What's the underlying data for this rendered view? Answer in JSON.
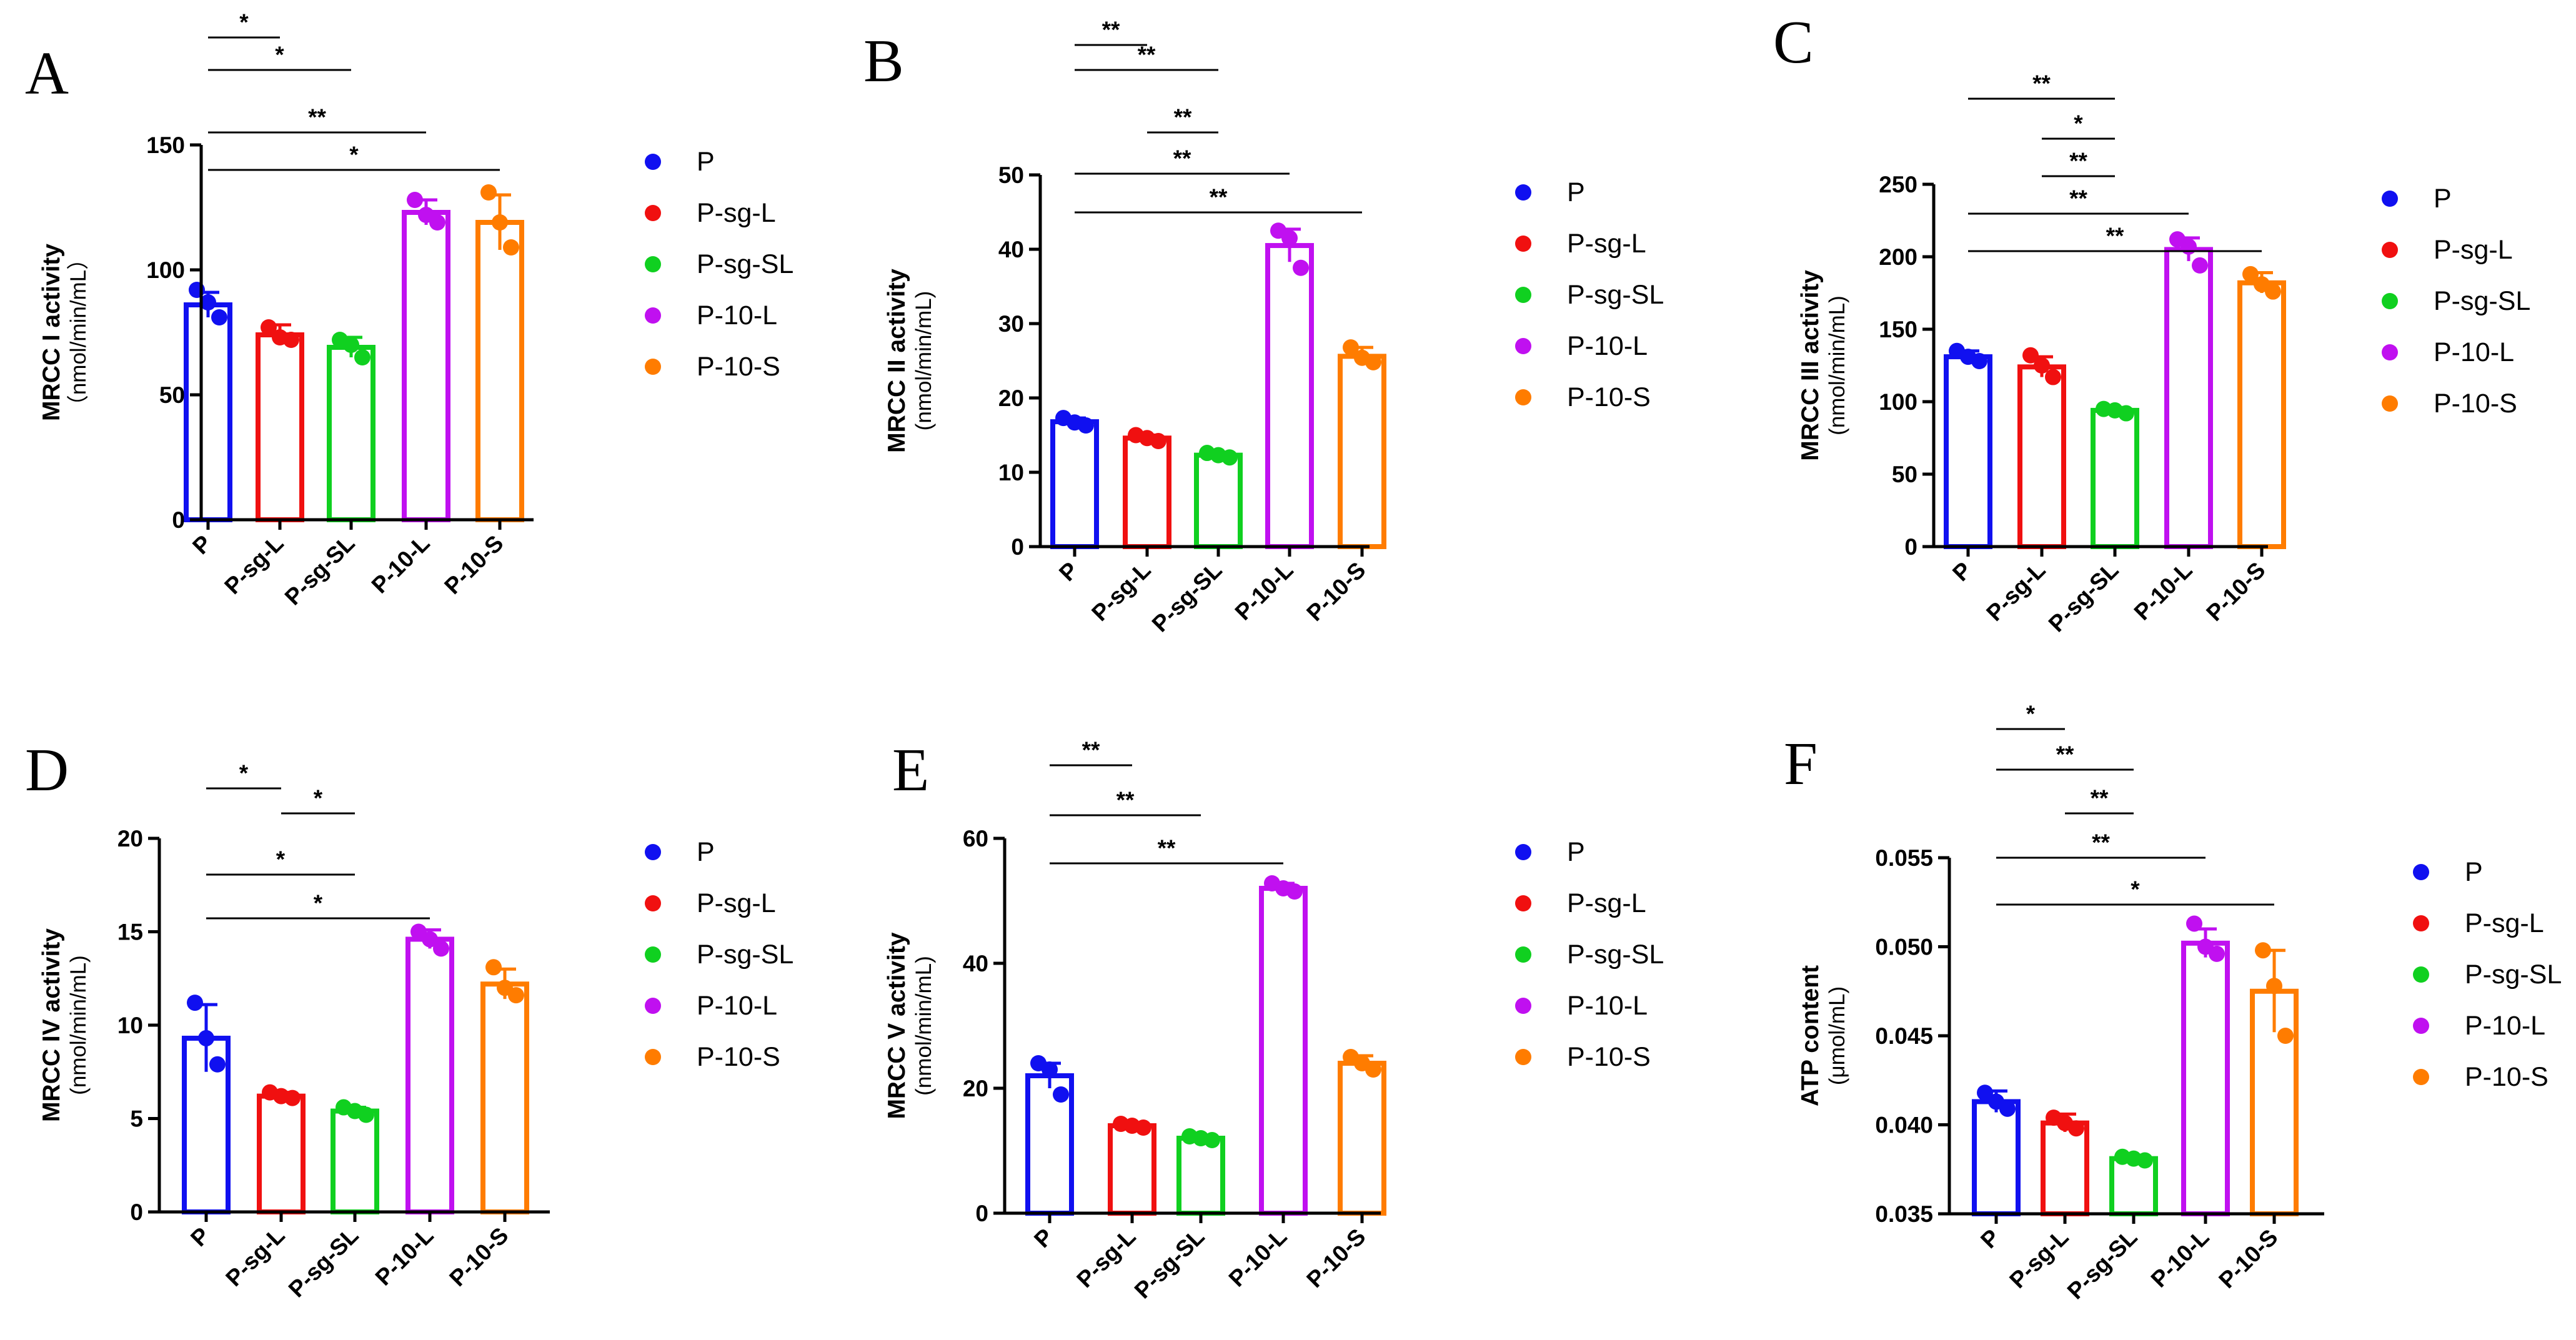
{
  "figure": {
    "categories": [
      "P",
      "P-sg-L",
      "P-sg-SL",
      "P-10-L",
      "P-10-S"
    ],
    "colors": {
      "P": "#1010f0",
      "P-sg-L": "#f01010",
      "P-sg-SL": "#10d020",
      "P-10-L": "#c010f0",
      "P-10-S": "#ff7c00"
    }
  },
  "chart_data": [
    {
      "panel": "A",
      "type": "bar",
      "ylabel": "MRCC I activity",
      "yunit": "（nmol/min/mL）",
      "categories": [
        "P",
        "P-sg-L",
        "P-sg-SL",
        "P-10-L",
        "P-10-S"
      ],
      "values": [
        86,
        74,
        69,
        123,
        119
      ],
      "errors": [
        5,
        4,
        4,
        5,
        11
      ],
      "points": [
        [
          92,
          87,
          81
        ],
        [
          77,
          73,
          72
        ],
        [
          72,
          70,
          65
        ],
        [
          128,
          122,
          119
        ],
        [
          131,
          119,
          109
        ]
      ],
      "ylim": [
        0,
        150
      ],
      "yticks": [
        "0",
        "50",
        "100",
        "150"
      ],
      "legend": [
        "P",
        "P-sg-L",
        "P-sg-SL",
        "P-10-L",
        "P-10-S"
      ],
      "comparisons": [
        {
          "from": "P",
          "to": "P-sg-L",
          "label": "*"
        },
        {
          "from": "P",
          "to": "P-sg-SL",
          "label": "*"
        },
        {
          "from": "P",
          "to": "P-10-L",
          "label": "**"
        },
        {
          "from": "P",
          "to": "P-10-S",
          "label": "*"
        }
      ]
    },
    {
      "panel": "B",
      "type": "bar",
      "ylabel": "MRCC II activity",
      "yunit": "(nmol/min/mL)",
      "categories": [
        "P",
        "P-sg-L",
        "P-sg-SL",
        "P-10-L",
        "P-10-S"
      ],
      "values": [
        16.8,
        14.6,
        12.3,
        40.5,
        25.6
      ],
      "errors": [
        0.5,
        0.4,
        0.3,
        2.2,
        1.2
      ],
      "points": [
        [
          17.3,
          16.7,
          16.3
        ],
        [
          15.0,
          14.6,
          14.2
        ],
        [
          12.6,
          12.3,
          12.0
        ],
        [
          42.5,
          41.5,
          37.5
        ],
        [
          26.8,
          25.4,
          24.8
        ]
      ],
      "ylim": [
        0,
        50
      ],
      "yticks": [
        "0",
        "10",
        "20",
        "30",
        "40",
        "50"
      ],
      "legend": [
        "P",
        "P-sg-L",
        "P-sg-SL",
        "P-10-L",
        "P-10-S"
      ],
      "comparisons": [
        {
          "from": "P",
          "to": "P-sg-L",
          "label": "**"
        },
        {
          "from": "P",
          "to": "P-sg-SL",
          "label": "**"
        },
        {
          "from": "P-sg-L",
          "to": "P-sg-SL",
          "label": "**"
        },
        {
          "from": "P",
          "to": "P-10-L",
          "label": "**"
        },
        {
          "from": "P",
          "to": "P-10-S",
          "label": "**"
        }
      ]
    },
    {
      "panel": "C",
      "type": "bar",
      "ylabel": "MRCC III activity",
      "yunit": "(nmol/min/mL)",
      "categories": [
        "P",
        "P-sg-L",
        "P-sg-SL",
        "P-10-L",
        "P-10-S"
      ],
      "values": [
        131,
        124,
        94,
        205,
        182
      ],
      "errors": [
        4,
        7,
        2,
        8,
        7
      ],
      "points": [
        [
          135,
          131,
          128
        ],
        [
          132,
          125,
          117
        ],
        [
          95,
          94,
          92
        ],
        [
          212,
          207,
          194
        ],
        [
          188,
          181,
          176
        ]
      ],
      "ylim": [
        0,
        250
      ],
      "yticks": [
        "0",
        "50",
        "100",
        "150",
        "200",
        "250"
      ],
      "legend": [
        "P",
        "P-sg-L",
        "P-sg-SL",
        "P-10-L",
        "P-10-S"
      ],
      "comparisons": [
        {
          "from": "P",
          "to": "P-sg-SL",
          "label": "**"
        },
        {
          "from": "P-sg-L",
          "to": "P-sg-SL",
          "label": "*"
        },
        {
          "from": "P-sg-L",
          "to": "P-sg-SL",
          "label": "**"
        },
        {
          "from": "P",
          "to": "P-10-L",
          "label": "**"
        },
        {
          "from": "P",
          "to": "P-10-S",
          "label": "**"
        }
      ]
    },
    {
      "panel": "D",
      "type": "bar",
      "ylabel": "MRCC IV activity",
      "yunit": "(nmol/min/mL)",
      "categories": [
        "P",
        "P-sg-L",
        "P-sg-SL",
        "P-10-L",
        "P-10-S"
      ],
      "values": [
        9.3,
        6.2,
        5.4,
        14.6,
        12.2
      ],
      "errors": [
        1.8,
        0.2,
        0.2,
        0.5,
        0.8
      ],
      "points": [
        [
          11.2,
          9.3,
          7.9
        ],
        [
          6.4,
          6.2,
          6.1
        ],
        [
          5.6,
          5.4,
          5.2
        ],
        [
          15.0,
          14.6,
          14.1
        ],
        [
          13.1,
          12.0,
          11.6
        ]
      ],
      "ylim": [
        0,
        20
      ],
      "yticks": [
        "0",
        "5",
        "10",
        "15",
        "20"
      ],
      "legend": [
        "P",
        "P-sg-L",
        "P-sg-SL",
        "P-10-L",
        "P-10-S"
      ],
      "comparisons": [
        {
          "from": "P",
          "to": "P-sg-L",
          "label": "*"
        },
        {
          "from": "P-sg-L",
          "to": "P-sg-SL",
          "label": "*"
        },
        {
          "from": "P",
          "to": "P-sg-SL",
          "label": "*"
        },
        {
          "from": "P",
          "to": "P-10-L",
          "label": "*"
        }
      ]
    },
    {
      "panel": "E",
      "type": "bar",
      "ylabel": "MRCC V activity",
      "yunit": "(nmol/min/mL)",
      "categories": [
        "P",
        "P-sg-L",
        "P-sg-SL",
        "P-10-L",
        "P-10-S"
      ],
      "values": [
        22,
        14,
        12,
        52,
        24
      ],
      "errors": [
        2,
        0.5,
        0.4,
        0.8,
        1.2
      ],
      "points": [
        [
          24,
          23,
          19
        ],
        [
          14.3,
          14.0,
          13.7
        ],
        [
          12.3,
          12.0,
          11.7
        ],
        [
          52.8,
          52.0,
          51.5
        ],
        [
          25.0,
          24.0,
          23.0
        ]
      ],
      "ylim": [
        0,
        60
      ],
      "yticks": [
        "0",
        "20",
        "40",
        "60"
      ],
      "legend": [
        "P",
        "P-sg-L",
        "P-sg-SL",
        "P-10-L",
        "P-10-S"
      ],
      "comparisons": [
        {
          "from": "P",
          "to": "P-sg-L",
          "label": "**"
        },
        {
          "from": "P",
          "to": "P-sg-SL",
          "label": "**"
        },
        {
          "from": "P",
          "to": "P-10-L",
          "label": "**"
        }
      ]
    },
    {
      "panel": "F",
      "type": "bar",
      "ylabel": "ATP content",
      "yunit": "(μmol/mL)",
      "categories": [
        "P",
        "P-sg-L",
        "P-sg-SL",
        "P-10-L",
        "P-10-S"
      ],
      "values": [
        0.0413,
        0.0401,
        0.0381,
        0.0502,
        0.0475
      ],
      "errors": [
        0.0006,
        0.0005,
        0.0002,
        0.0008,
        0.0023
      ],
      "points": [
        [
          0.0418,
          0.0413,
          0.0409
        ],
        [
          0.0404,
          0.0401,
          0.0398
        ],
        [
          0.0382,
          0.0381,
          0.038
        ],
        [
          0.0513,
          0.05,
          0.0496
        ],
        [
          0.0498,
          0.0478,
          0.045
        ]
      ],
      "ylim": [
        0.035,
        0.055
      ],
      "yticks": [
        "0.035",
        "0.040",
        "0.045",
        "0.050",
        "0.055"
      ],
      "legend": [
        "P",
        "P-sg-L",
        "P-sg-SL",
        "P-10-L",
        "P-10-S"
      ],
      "comparisons": [
        {
          "from": "P",
          "to": "P-sg-L",
          "label": "*"
        },
        {
          "from": "P",
          "to": "P-sg-SL",
          "label": "**"
        },
        {
          "from": "P-sg-L",
          "to": "P-sg-SL",
          "label": "**"
        },
        {
          "from": "P",
          "to": "P-10-L",
          "label": "**"
        },
        {
          "from": "P",
          "to": "P-10-S",
          "label": "*"
        }
      ]
    }
  ]
}
